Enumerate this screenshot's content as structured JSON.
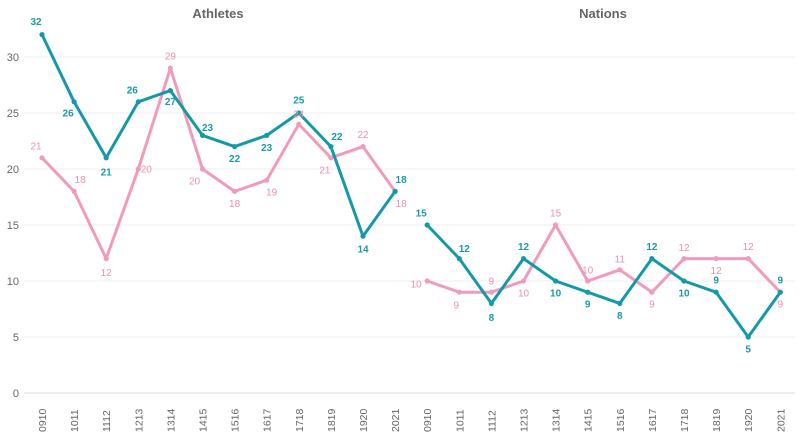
{
  "colors": {
    "teal": "#1499a8",
    "pink": "#f09bbd",
    "tealLabel": "#1b9aa6",
    "pinkLabel": "#ec8fb2",
    "axisText": "#666666",
    "grid": "#eeeeee"
  },
  "chart_data": {
    "type": "line",
    "ylim": [
      0,
      33
    ],
    "yticks": [
      0,
      5,
      10,
      15,
      20,
      25,
      30
    ],
    "categories": [
      "0910",
      "1011",
      "1112",
      "1213",
      "1314",
      "1415",
      "1516",
      "1617",
      "1718",
      "1819",
      "1920",
      "2021"
    ],
    "panels": [
      {
        "title": "Athletes",
        "series": [
          {
            "name": "teal",
            "values": [
              32,
              26,
              21,
              26,
              27,
              23,
              22,
              23,
              25,
              22,
              14,
              18
            ]
          },
          {
            "name": "pink",
            "values": [
              21,
              18,
              12,
              20,
              29,
              20,
              18,
              19,
              24,
              21,
              22,
              18
            ]
          }
        ]
      },
      {
        "title": "Nations",
        "series": [
          {
            "name": "teal",
            "values": [
              15,
              12,
              8,
              12,
              10,
              9,
              8,
              12,
              10,
              9,
              5,
              9
            ]
          },
          {
            "name": "pink",
            "values": [
              10,
              9,
              9,
              10,
              15,
              10,
              11,
              9,
              12,
              12,
              12,
              9
            ]
          }
        ]
      }
    ]
  }
}
